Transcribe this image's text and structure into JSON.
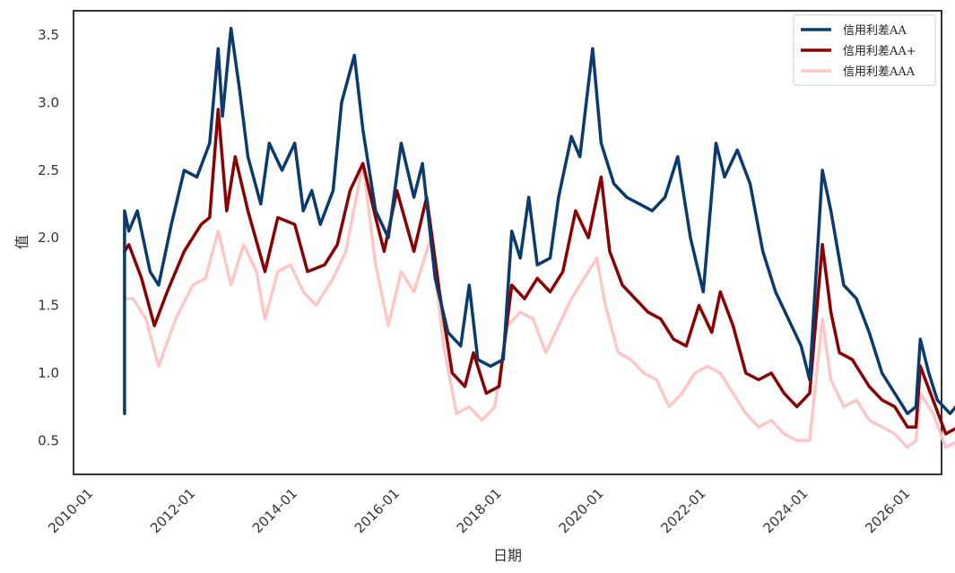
{
  "chart_data": {
    "type": "line",
    "title": "",
    "xlabel": "日期",
    "ylabel": "值",
    "x_ticks": [
      "2010-01",
      "2012-01",
      "2014-01",
      "2016-01",
      "2018-01",
      "2020-01",
      "2022-01",
      "2024-01",
      "2026-01"
    ],
    "y_ticks": [
      "0.5",
      "1.0",
      "1.5",
      "2.0",
      "2.5",
      "3.0",
      "3.5"
    ],
    "ylim": [
      0.25,
      3.68
    ],
    "xlim": [
      "2009-07",
      "2026-07"
    ],
    "grid": false,
    "legend_position": "top-right",
    "series": [
      {
        "name": "信用利差AA",
        "color": "#0a3a6e",
        "points": [
          [
            "2010-07",
            0.7
          ],
          [
            "2010-07",
            2.2
          ],
          [
            "2010-08",
            2.05
          ],
          [
            "2010-10",
            2.2
          ],
          [
            "2011-01",
            1.75
          ],
          [
            "2011-03",
            1.65
          ],
          [
            "2011-06",
            2.1
          ],
          [
            "2011-09",
            2.5
          ],
          [
            "2011-12",
            2.45
          ],
          [
            "2012-03",
            2.7
          ],
          [
            "2012-05",
            3.4
          ],
          [
            "2012-06",
            2.9
          ],
          [
            "2012-08",
            3.55
          ],
          [
            "2012-10",
            3.1
          ],
          [
            "2012-12",
            2.6
          ],
          [
            "2013-03",
            2.25
          ],
          [
            "2013-05",
            2.7
          ],
          [
            "2013-08",
            2.5
          ],
          [
            "2013-11",
            2.7
          ],
          [
            "2014-01",
            2.2
          ],
          [
            "2014-03",
            2.35
          ],
          [
            "2014-05",
            2.1
          ],
          [
            "2014-08",
            2.35
          ],
          [
            "2014-10",
            3.0
          ],
          [
            "2015-01",
            3.35
          ],
          [
            "2015-03",
            2.8
          ],
          [
            "2015-06",
            2.2
          ],
          [
            "2015-09",
            2.0
          ],
          [
            "2015-12",
            2.7
          ],
          [
            "2016-03",
            2.3
          ],
          [
            "2016-05",
            2.55
          ],
          [
            "2016-08",
            1.7
          ],
          [
            "2016-11",
            1.3
          ],
          [
            "2017-02",
            1.2
          ],
          [
            "2017-04",
            1.65
          ],
          [
            "2017-06",
            1.1
          ],
          [
            "2017-09",
            1.05
          ],
          [
            "2017-12",
            1.1
          ],
          [
            "2018-02",
            2.05
          ],
          [
            "2018-04",
            1.85
          ],
          [
            "2018-06",
            2.3
          ],
          [
            "2018-08",
            1.8
          ],
          [
            "2018-11",
            1.85
          ],
          [
            "2019-01",
            2.3
          ],
          [
            "2019-04",
            2.75
          ],
          [
            "2019-06",
            2.6
          ],
          [
            "2019-09",
            3.4
          ],
          [
            "2019-11",
            2.7
          ],
          [
            "2020-02",
            2.4
          ],
          [
            "2020-05",
            2.3
          ],
          [
            "2020-08",
            2.25
          ],
          [
            "2020-11",
            2.2
          ],
          [
            "2021-02",
            2.3
          ],
          [
            "2021-05",
            2.6
          ],
          [
            "2021-08",
            2.0
          ],
          [
            "2021-11",
            1.6
          ],
          [
            "2022-02",
            2.7
          ],
          [
            "2022-04",
            2.45
          ],
          [
            "2022-07",
            2.65
          ],
          [
            "2022-10",
            2.4
          ],
          [
            "2023-01",
            1.9
          ],
          [
            "2023-04",
            1.6
          ],
          [
            "2023-07",
            1.4
          ],
          [
            "2023-10",
            1.2
          ],
          [
            "2023-12",
            0.95
          ],
          [
            "2024-03",
            2.5
          ],
          [
            "2024-05",
            2.2
          ],
          [
            "2024-08",
            1.65
          ],
          [
            "2024-11",
            1.55
          ],
          [
            "2025-02",
            1.3
          ],
          [
            "2025-05",
            1.0
          ],
          [
            "2025-08",
            0.85
          ],
          [
            "2025-11",
            0.7
          ],
          [
            "2026-01",
            0.75
          ],
          [
            "2026-02",
            1.25
          ],
          [
            "2026-04",
            1.0
          ],
          [
            "2026-06",
            0.8
          ],
          [
            "2026-09",
            0.7
          ],
          [
            "2027-01",
            0.85
          ]
        ]
      },
      {
        "name": "信用利差AA+",
        "color": "#8b0000",
        "points": [
          [
            "2010-07",
            1.9
          ],
          [
            "2010-08",
            1.95
          ],
          [
            "2010-11",
            1.7
          ],
          [
            "2011-02",
            1.35
          ],
          [
            "2011-05",
            1.6
          ],
          [
            "2011-09",
            1.9
          ],
          [
            "2012-01",
            2.1
          ],
          [
            "2012-03",
            2.15
          ],
          [
            "2012-05",
            2.95
          ],
          [
            "2012-07",
            2.2
          ],
          [
            "2012-09",
            2.6
          ],
          [
            "2012-12",
            2.2
          ],
          [
            "2013-04",
            1.75
          ],
          [
            "2013-07",
            2.15
          ],
          [
            "2013-11",
            2.1
          ],
          [
            "2014-02",
            1.75
          ],
          [
            "2014-06",
            1.8
          ],
          [
            "2014-09",
            1.95
          ],
          [
            "2014-12",
            2.35
          ],
          [
            "2015-03",
            2.55
          ],
          [
            "2015-06",
            2.15
          ],
          [
            "2015-08",
            1.9
          ],
          [
            "2015-11",
            2.35
          ],
          [
            "2016-03",
            1.9
          ],
          [
            "2016-06",
            2.3
          ],
          [
            "2016-09",
            1.6
          ],
          [
            "2016-12",
            1.0
          ],
          [
            "2017-03",
            0.9
          ],
          [
            "2017-05",
            1.15
          ],
          [
            "2017-08",
            0.85
          ],
          [
            "2017-11",
            0.9
          ],
          [
            "2018-02",
            1.65
          ],
          [
            "2018-05",
            1.55
          ],
          [
            "2018-08",
            1.7
          ],
          [
            "2018-11",
            1.6
          ],
          [
            "2019-02",
            1.75
          ],
          [
            "2019-05",
            2.2
          ],
          [
            "2019-08",
            2.0
          ],
          [
            "2019-11",
            2.45
          ],
          [
            "2020-01",
            1.9
          ],
          [
            "2020-04",
            1.65
          ],
          [
            "2020-07",
            1.55
          ],
          [
            "2020-10",
            1.45
          ],
          [
            "2021-01",
            1.4
          ],
          [
            "2021-04",
            1.25
          ],
          [
            "2021-07",
            1.2
          ],
          [
            "2021-10",
            1.5
          ],
          [
            "2022-01",
            1.3
          ],
          [
            "2022-03",
            1.6
          ],
          [
            "2022-06",
            1.35
          ],
          [
            "2022-09",
            1.0
          ],
          [
            "2022-12",
            0.95
          ],
          [
            "2023-03",
            1.0
          ],
          [
            "2023-06",
            0.85
          ],
          [
            "2023-09",
            0.75
          ],
          [
            "2023-12",
            0.85
          ],
          [
            "2024-03",
            1.95
          ],
          [
            "2024-05",
            1.45
          ],
          [
            "2024-07",
            1.15
          ],
          [
            "2024-10",
            1.1
          ],
          [
            "2025-02",
            0.9
          ],
          [
            "2025-05",
            0.8
          ],
          [
            "2025-08",
            0.75
          ],
          [
            "2025-11",
            0.6
          ],
          [
            "2026-01",
            0.6
          ],
          [
            "2026-02",
            1.05
          ],
          [
            "2026-05",
            0.8
          ],
          [
            "2026-08",
            0.55
          ],
          [
            "2026-11",
            0.6
          ],
          [
            "2027-01",
            0.7
          ]
        ]
      },
      {
        "name": "信用利差AAA",
        "color": "#ffc6c6",
        "points": [
          [
            "2010-07",
            1.55
          ],
          [
            "2010-09",
            1.55
          ],
          [
            "2010-12",
            1.4
          ],
          [
            "2011-03",
            1.05
          ],
          [
            "2011-07",
            1.4
          ],
          [
            "2011-11",
            1.65
          ],
          [
            "2012-02",
            1.7
          ],
          [
            "2012-05",
            2.05
          ],
          [
            "2012-08",
            1.65
          ],
          [
            "2012-11",
            1.95
          ],
          [
            "2013-02",
            1.75
          ],
          [
            "2013-04",
            1.4
          ],
          [
            "2013-07",
            1.75
          ],
          [
            "2013-10",
            1.8
          ],
          [
            "2014-01",
            1.6
          ],
          [
            "2014-04",
            1.5
          ],
          [
            "2014-08",
            1.7
          ],
          [
            "2014-11",
            1.9
          ],
          [
            "2015-03",
            2.55
          ],
          [
            "2015-06",
            1.8
          ],
          [
            "2015-09",
            1.35
          ],
          [
            "2015-12",
            1.75
          ],
          [
            "2016-03",
            1.6
          ],
          [
            "2016-07",
            2.0
          ],
          [
            "2016-10",
            1.2
          ],
          [
            "2017-01",
            0.7
          ],
          [
            "2017-04",
            0.75
          ],
          [
            "2017-07",
            0.65
          ],
          [
            "2017-10",
            0.75
          ],
          [
            "2018-01",
            1.35
          ],
          [
            "2018-04",
            1.45
          ],
          [
            "2018-07",
            1.4
          ],
          [
            "2018-10",
            1.15
          ],
          [
            "2019-01",
            1.35
          ],
          [
            "2019-04",
            1.55
          ],
          [
            "2019-07",
            1.7
          ],
          [
            "2019-10",
            1.85
          ],
          [
            "2019-12",
            1.5
          ],
          [
            "2020-03",
            1.15
          ],
          [
            "2020-06",
            1.1
          ],
          [
            "2020-09",
            1.0
          ],
          [
            "2020-12",
            0.95
          ],
          [
            "2021-03",
            0.75
          ],
          [
            "2021-06",
            0.85
          ],
          [
            "2021-09",
            1.0
          ],
          [
            "2021-12",
            1.05
          ],
          [
            "2022-03",
            1.0
          ],
          [
            "2022-06",
            0.85
          ],
          [
            "2022-09",
            0.7
          ],
          [
            "2022-12",
            0.6
          ],
          [
            "2023-03",
            0.65
          ],
          [
            "2023-06",
            0.55
          ],
          [
            "2023-09",
            0.5
          ],
          [
            "2023-12",
            0.5
          ],
          [
            "2024-03",
            1.4
          ],
          [
            "2024-05",
            0.95
          ],
          [
            "2024-08",
            0.75
          ],
          [
            "2024-11",
            0.8
          ],
          [
            "2025-02",
            0.65
          ],
          [
            "2025-05",
            0.6
          ],
          [
            "2025-08",
            0.55
          ],
          [
            "2025-11",
            0.45
          ],
          [
            "2026-01",
            0.5
          ],
          [
            "2026-02",
            0.85
          ],
          [
            "2026-05",
            0.7
          ],
          [
            "2026-08",
            0.45
          ],
          [
            "2026-11",
            0.5
          ],
          [
            "2027-01",
            0.6
          ]
        ]
      }
    ]
  }
}
